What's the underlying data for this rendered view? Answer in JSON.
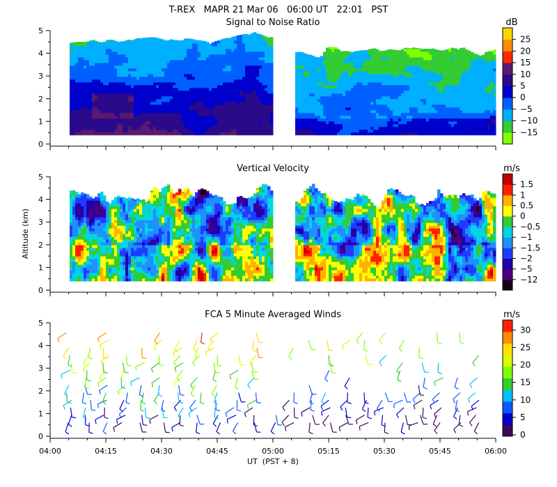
{
  "header": {
    "title": "T-REX   MAPR 21 Mar 06   06:00 UT   22:01   PST"
  },
  "colors": {
    "snr_scale": [
      "#7fff00",
      "#33cc33",
      "#00b0ff",
      "#0060ff",
      "#0000cc",
      "#2a0a8a",
      "#5a1a6e",
      "#ff2a00",
      "#ff8c00",
      "#ffd400"
    ],
    "vv_scale": [
      "#1a001a",
      "#4b0082",
      "#2200aa",
      "#1e3cff",
      "#1e90ff",
      "#00d5e5",
      "#33cc33",
      "#ffff00",
      "#ffb000",
      "#ff2000",
      "#c00000"
    ],
    "wind_scale": [
      "#3a0a5a",
      "#0000cc",
      "#0a5aff",
      "#00c0ff",
      "#33cc33",
      "#7fff00",
      "#d4ff00",
      "#ffe000",
      "#ff8c00",
      "#ff2000"
    ]
  },
  "chart_data": [
    {
      "type": "heatmap",
      "title": "Signal to Noise Ratio",
      "ylabel": "",
      "ylim": [
        0,
        5
      ],
      "yticks": [
        "0",
        "1",
        "2",
        "3",
        "4",
        "5"
      ],
      "colorbar_unit": "dB",
      "colorbar_ticks": [
        "−15",
        "−10",
        "−5",
        "0",
        "5",
        "10",
        "15",
        "20",
        "25"
      ],
      "data_gap": [
        "05:00",
        "05:06"
      ]
    },
    {
      "type": "heatmap",
      "title": "Vertical Velocity",
      "ylabel": "Altitude (km)",
      "ylim": [
        0,
        5
      ],
      "yticks": [
        "0",
        "1",
        "2",
        "3",
        "4",
        "5"
      ],
      "colorbar_unit": "m/s",
      "colorbar_ticks": [
        "−12",
        "−5",
        "−2",
        "−1.5",
        "−1",
        "−0.5",
        "0",
        "0.5",
        "1",
        "1.5"
      ],
      "data_gap": [
        "05:00",
        "05:06"
      ]
    },
    {
      "type": "scatter",
      "title": "FCA 5 Minute Averaged Winds",
      "ylabel": "",
      "ylim": [
        0,
        5
      ],
      "yticks": [
        "0",
        "1",
        "2",
        "3",
        "4",
        "5"
      ],
      "colorbar_unit": "m/s",
      "colorbar_ticks": [
        "0",
        "5",
        "10",
        "15",
        "20",
        "25",
        "30"
      ],
      "xlabel": "UT  (PST + 8)",
      "xlim": [
        "04:00",
        "06:00"
      ],
      "xticks": [
        "04:00",
        "04:15",
        "04:30",
        "04:45",
        "05:00",
        "05:15",
        "05:30",
        "05:45",
        "06:00"
      ]
    }
  ]
}
